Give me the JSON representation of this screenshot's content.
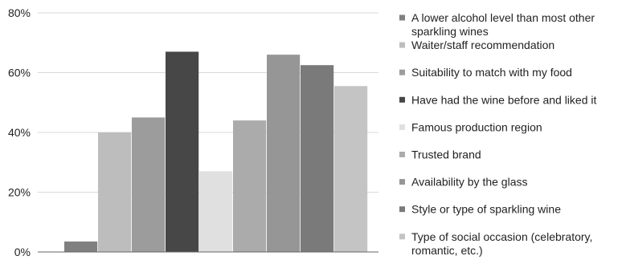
{
  "chart_data": {
    "type": "bar",
    "title": "",
    "xlabel": "",
    "ylabel": "",
    "ylim": [
      0,
      80
    ],
    "yticks": [
      0,
      20,
      40,
      60,
      80
    ],
    "ytick_labels": [
      "0%",
      "20%",
      "40%",
      "60%",
      "80%"
    ],
    "grid": "horizontal",
    "legend_position": "right",
    "series": [
      {
        "name": "A lower alcohol level than most other sparkling wines",
        "value": 3.5,
        "color": "#808080"
      },
      {
        "name": "Waiter/staff recommendation",
        "value": 40,
        "color": "#BDBDBD"
      },
      {
        "name": "Suitability to match with my food",
        "value": 45,
        "color": "#9C9C9C"
      },
      {
        "name": "Have had the wine before and liked it",
        "value": 67,
        "color": "#474747"
      },
      {
        "name": "Famous production region",
        "value": 27,
        "color": "#E0E0E0"
      },
      {
        "name": "Trusted brand",
        "value": 44,
        "color": "#ABABAB"
      },
      {
        "name": "Availability by the glass",
        "value": 66,
        "color": "#969696"
      },
      {
        "name": "Style or type of sparkling wine",
        "value": 62.5,
        "color": "#7A7A7A"
      },
      {
        "name": "Type of social occasion (celebratory, romantic, etc.)",
        "value": 55.5,
        "color": "#C4C4C4"
      }
    ]
  }
}
